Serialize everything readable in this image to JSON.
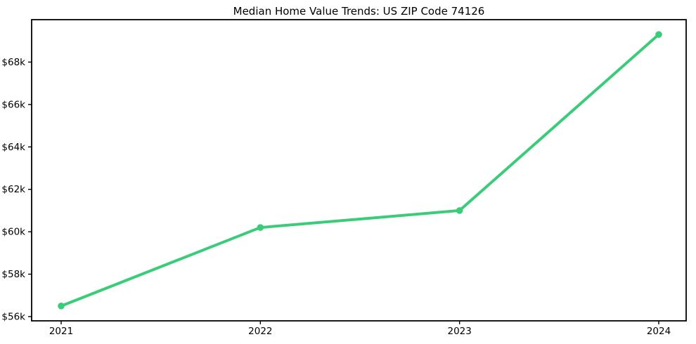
{
  "chart_data": {
    "type": "line",
    "title": "Median Home Value Trends: US ZIP Code 74126",
    "xlabel": "",
    "ylabel": "",
    "x_tick_labels": [
      "2021",
      "2022",
      "2023",
      "2024"
    ],
    "x": [
      2021,
      2022,
      2023,
      2024
    ],
    "values": [
      56500,
      60200,
      61000,
      69300
    ],
    "y_ticks": [
      {
        "value": 56000,
        "label": "$56k"
      },
      {
        "value": 58000,
        "label": "$58k"
      },
      {
        "value": 60000,
        "label": "$60k"
      },
      {
        "value": 62000,
        "label": "$62k"
      },
      {
        "value": 64000,
        "label": "$64k"
      },
      {
        "value": 66000,
        "label": "$66k"
      },
      {
        "value": 68000,
        "label": "$68k"
      }
    ],
    "ylim": [
      55800,
      70000
    ],
    "grid": false,
    "legend": null,
    "colors": {
      "line": "#3bcc7a",
      "marker": "#3bcc7a",
      "spine": "#000000",
      "tick_text": "#000000",
      "background": "#ffffff"
    }
  }
}
